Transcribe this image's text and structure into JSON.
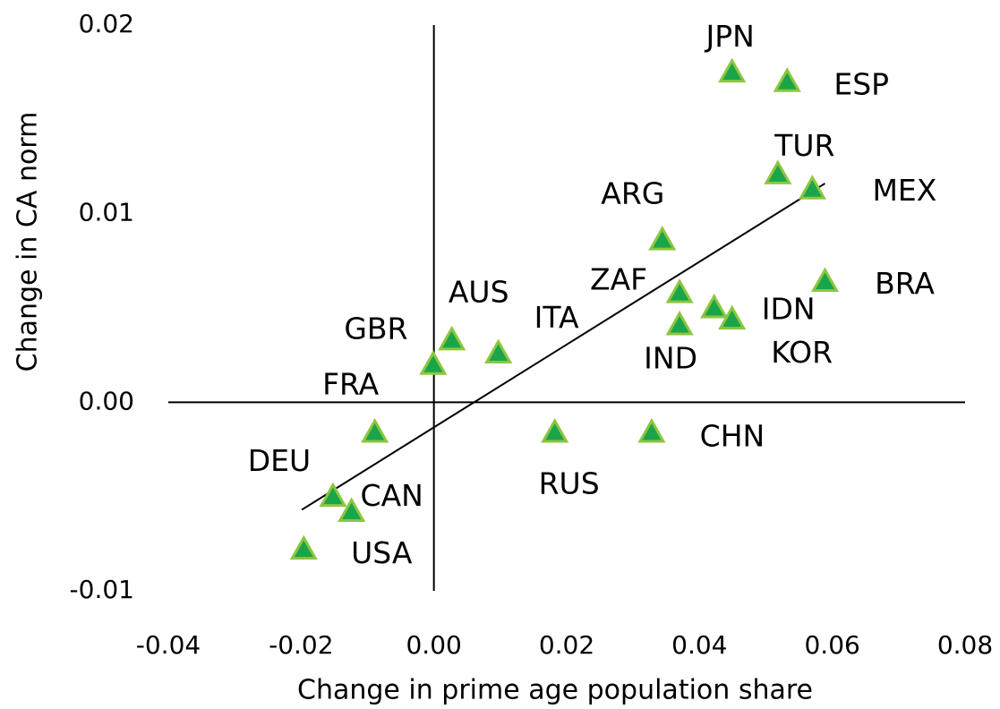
{
  "chart_data": {
    "type": "scatter",
    "x_label": "Change in prime age population share",
    "y_label": "Change in CA norm",
    "labels": [
      "JPN",
      "ESP",
      "TUR",
      "MEX",
      "ARG",
      "BRA",
      "ZAF",
      "IDN",
      "KOR",
      "IND",
      "AUS",
      "ITA",
      "GBR",
      "FRA",
      "RUS",
      "CHN",
      "DEU",
      "CAN",
      "USA"
    ],
    "x": [
      0.0449,
      0.0532,
      0.0518,
      0.057,
      0.0344,
      0.0589,
      0.037,
      0.0422,
      0.0449,
      0.037,
      0.0027,
      0.0097,
      -0.0001,
      -0.0089,
      0.0182,
      0.0328,
      -0.0152,
      -0.0124,
      -0.0196
    ],
    "values": [
      0.0175,
      0.017,
      0.0121,
      0.0113,
      0.0086,
      0.0064,
      0.0058,
      0.005,
      0.0044,
      0.0041,
      0.0033,
      0.0026,
      0.002,
      -0.0016,
      -0.0016,
      -0.0016,
      -0.005,
      -0.0058,
      -0.0078
    ],
    "color": "#1aa54a",
    "trendline": {
      "x": [
        -0.0199,
        0.0589
      ],
      "y": [
        -0.0057,
        0.0116
      ]
    },
    "xlim": [
      -0.04,
      0.08
    ],
    "xticks": [
      {
        "value": -0.04,
        "label": "-0.04"
      },
      {
        "value": -0.02,
        "label": "-0.02"
      },
      {
        "value": 0,
        "label": "0.00"
      },
      {
        "value": 0.02,
        "label": "0.02"
      },
      {
        "value": 0.04,
        "label": "0.04"
      },
      {
        "value": 0.06,
        "label": "0.06"
      },
      {
        "value": 0.08,
        "label": "0.08"
      }
    ],
    "ylim": [
      -0.01,
      0.02
    ],
    "yticks": [
      {
        "value": -0.01,
        "label": "-0.01"
      },
      {
        "value": 0,
        "label": "0.00"
      },
      {
        "value": 0.01,
        "label": "0.01"
      },
      {
        "value": 0.02,
        "label": "0.02"
      }
    ],
    "grid": false
  }
}
